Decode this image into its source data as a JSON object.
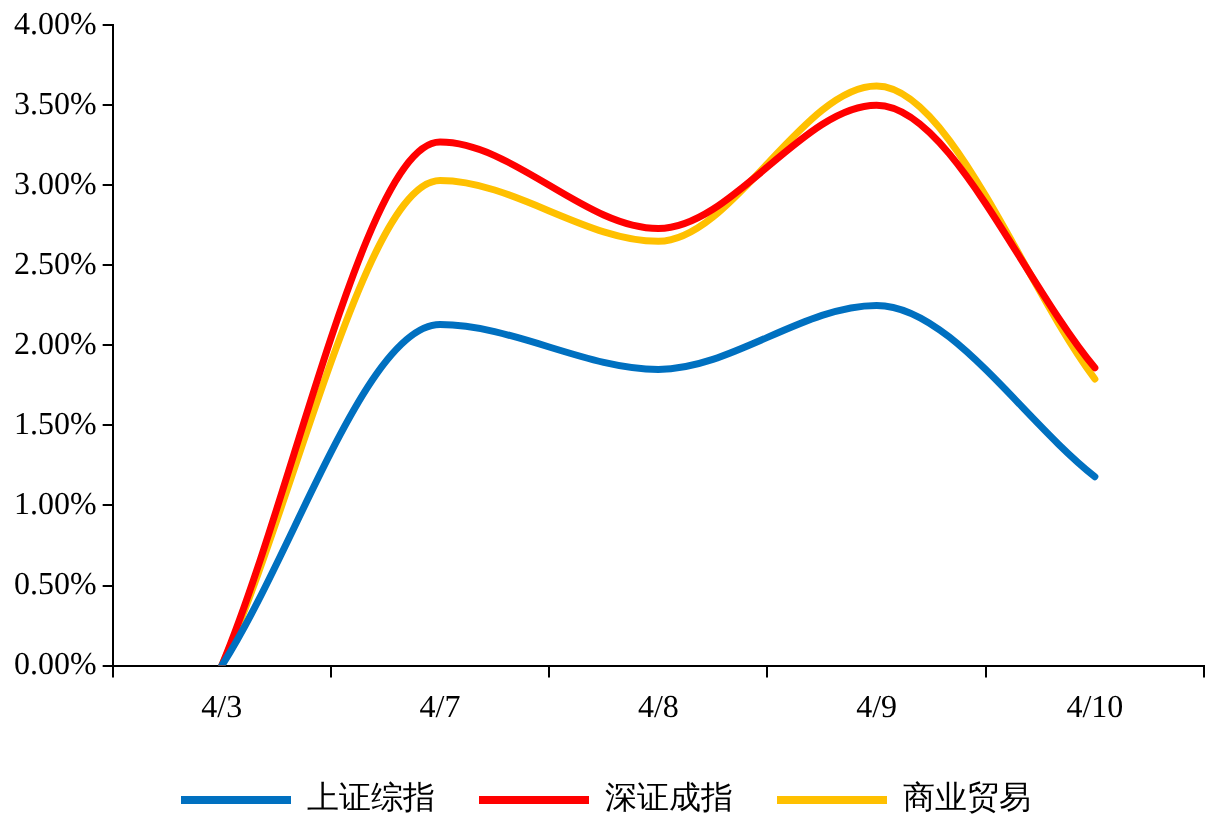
{
  "chart_data": {
    "type": "line",
    "categories": [
      "4/3",
      "4/7",
      "4/8",
      "4/9",
      "4/10"
    ],
    "series": [
      {
        "name": "上证综指",
        "color": "#0070c0",
        "values": [
          0,
          2.13,
          1.85,
          2.25,
          1.18
        ]
      },
      {
        "name": "深证成指",
        "color": "#ff0000",
        "values": [
          0,
          3.27,
          2.73,
          3.5,
          1.86
        ]
      },
      {
        "name": "商业贸易",
        "color": "#ffc000",
        "values": [
          0,
          3.03,
          2.65,
          3.62,
          1.79
        ]
      }
    ],
    "ylim": [
      0,
      4
    ],
    "yticks": [
      {
        "value": 0,
        "label": "0.00%"
      },
      {
        "value": 0.5,
        "label": "0.50%"
      },
      {
        "value": 1,
        "label": "1.00%"
      },
      {
        "value": 1.5,
        "label": "1.50%"
      },
      {
        "value": 2,
        "label": "2.00%"
      },
      {
        "value": 2.5,
        "label": "2.50%"
      },
      {
        "value": 3,
        "label": "3.00%"
      },
      {
        "value": 3.5,
        "label": "3.50%"
      },
      {
        "value": 4,
        "label": "4.00%"
      }
    ],
    "grid": false,
    "legend": "bottom",
    "marker": "none",
    "line_style": "solid"
  }
}
